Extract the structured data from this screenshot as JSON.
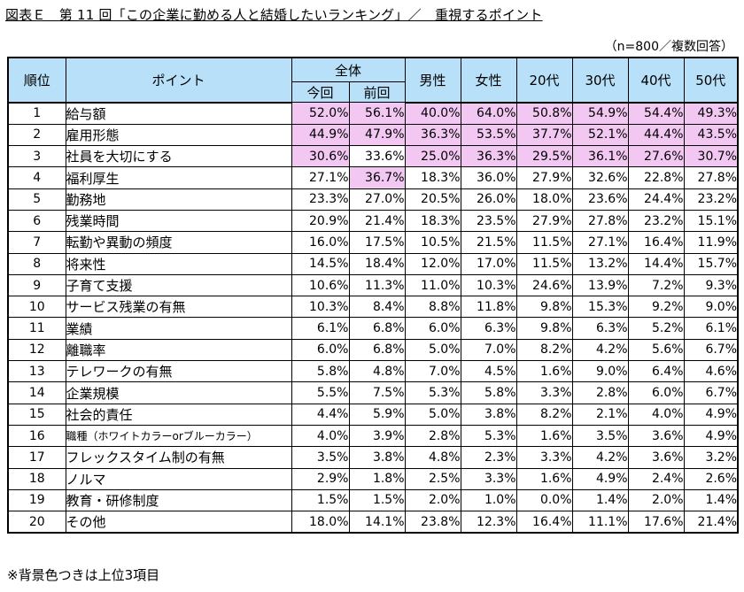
{
  "title": "図表Ｅ　第 11 回「この企業に勤める人と結婚したいランキング」／　重視するポイント",
  "note": "（n=800／複数回答）",
  "footnote": "※背景色つきは上位3項目",
  "headers": {
    "rank": "順位",
    "point": "ポイント",
    "overall": "全体",
    "current": "今回",
    "previous": "前回",
    "male": "男性",
    "female": "女性",
    "age20": "20代",
    "age30": "30代",
    "age40": "40代",
    "age50": "50代"
  },
  "highlight_color": "#f2c8f2",
  "header_color": "#b8e0f8",
  "rows": [
    {
      "rank": "1",
      "label": "給与額",
      "values": [
        "52.0%",
        "56.1%",
        "40.0%",
        "64.0%",
        "50.8%",
        "54.9%",
        "54.4%",
        "49.3%"
      ]
    },
    {
      "rank": "2",
      "label": "雇用形態",
      "values": [
        "44.9%",
        "47.9%",
        "36.3%",
        "53.5%",
        "37.7%",
        "52.1%",
        "44.4%",
        "43.5%"
      ]
    },
    {
      "rank": "3",
      "label": "社員を大切にする",
      "values": [
        "30.6%",
        "33.6%",
        "25.0%",
        "36.3%",
        "29.5%",
        "36.1%",
        "27.6%",
        "30.7%"
      ]
    },
    {
      "rank": "4",
      "label": "福利厚生",
      "values": [
        "27.1%",
        "36.7%",
        "18.3%",
        "36.0%",
        "27.9%",
        "32.6%",
        "22.8%",
        "27.8%"
      ]
    },
    {
      "rank": "5",
      "label": "勤務地",
      "values": [
        "23.3%",
        "27.0%",
        "20.5%",
        "26.0%",
        "18.0%",
        "23.6%",
        "24.4%",
        "23.2%"
      ]
    },
    {
      "rank": "6",
      "label": "残業時間",
      "values": [
        "20.9%",
        "21.4%",
        "18.3%",
        "23.5%",
        "27.9%",
        "27.8%",
        "23.2%",
        "15.1%"
      ]
    },
    {
      "rank": "7",
      "label": "転勤や異動の頻度",
      "values": [
        "16.0%",
        "17.5%",
        "10.5%",
        "21.5%",
        "11.5%",
        "27.1%",
        "16.4%",
        "11.9%"
      ]
    },
    {
      "rank": "8",
      "label": "将来性",
      "values": [
        "14.5%",
        "18.4%",
        "12.0%",
        "17.0%",
        "11.5%",
        "13.2%",
        "14.4%",
        "15.7%"
      ]
    },
    {
      "rank": "9",
      "label": "子育て支援",
      "values": [
        "10.6%",
        "11.3%",
        "11.0%",
        "10.3%",
        "24.6%",
        "13.9%",
        "7.2%",
        "9.3%"
      ]
    },
    {
      "rank": "10",
      "label": "サービス残業の有無",
      "values": [
        "10.3%",
        "8.4%",
        "8.8%",
        "11.8%",
        "9.8%",
        "15.3%",
        "9.2%",
        "9.0%"
      ]
    },
    {
      "rank": "11",
      "label": "業績",
      "values": [
        "6.1%",
        "6.8%",
        "6.0%",
        "6.3%",
        "9.8%",
        "6.3%",
        "5.2%",
        "6.1%"
      ]
    },
    {
      "rank": "12",
      "label": "離職率",
      "values": [
        "6.0%",
        "6.8%",
        "5.0%",
        "7.0%",
        "8.2%",
        "4.2%",
        "5.6%",
        "6.7%"
      ]
    },
    {
      "rank": "13",
      "label": "テレワークの有無",
      "values": [
        "5.8%",
        "4.8%",
        "7.0%",
        "4.5%",
        "1.6%",
        "9.0%",
        "6.4%",
        "4.6%"
      ]
    },
    {
      "rank": "14",
      "label": "企業規模",
      "values": [
        "5.5%",
        "7.5%",
        "5.3%",
        "5.8%",
        "3.3%",
        "2.8%",
        "6.0%",
        "6.7%"
      ]
    },
    {
      "rank": "15",
      "label": "社会的責任",
      "values": [
        "4.4%",
        "5.9%",
        "5.0%",
        "3.8%",
        "8.2%",
        "2.1%",
        "4.0%",
        "4.9%"
      ]
    },
    {
      "rank": "16",
      "label": "職種（ホワイトカラーorブルーカラー）",
      "values": [
        "4.0%",
        "3.9%",
        "2.8%",
        "5.3%",
        "1.6%",
        "3.5%",
        "3.6%",
        "4.9%"
      ]
    },
    {
      "rank": "17",
      "label": "フレックスタイム制の有無",
      "values": [
        "3.5%",
        "3.8%",
        "4.8%",
        "2.3%",
        "3.3%",
        "4.2%",
        "3.6%",
        "3.2%"
      ]
    },
    {
      "rank": "18",
      "label": "ノルマ",
      "values": [
        "2.9%",
        "1.8%",
        "2.5%",
        "3.3%",
        "1.6%",
        "4.9%",
        "2.4%",
        "2.6%"
      ]
    },
    {
      "rank": "19",
      "label": "教育・研修制度",
      "values": [
        "1.5%",
        "1.5%",
        "2.0%",
        "1.0%",
        "0.0%",
        "1.4%",
        "2.0%",
        "1.4%"
      ]
    },
    {
      "rank": "20",
      "label": "その他",
      "values": [
        "18.0%",
        "14.1%",
        "23.8%",
        "12.3%",
        "16.4%",
        "11.1%",
        "17.6%",
        "21.4%"
      ]
    }
  ]
}
